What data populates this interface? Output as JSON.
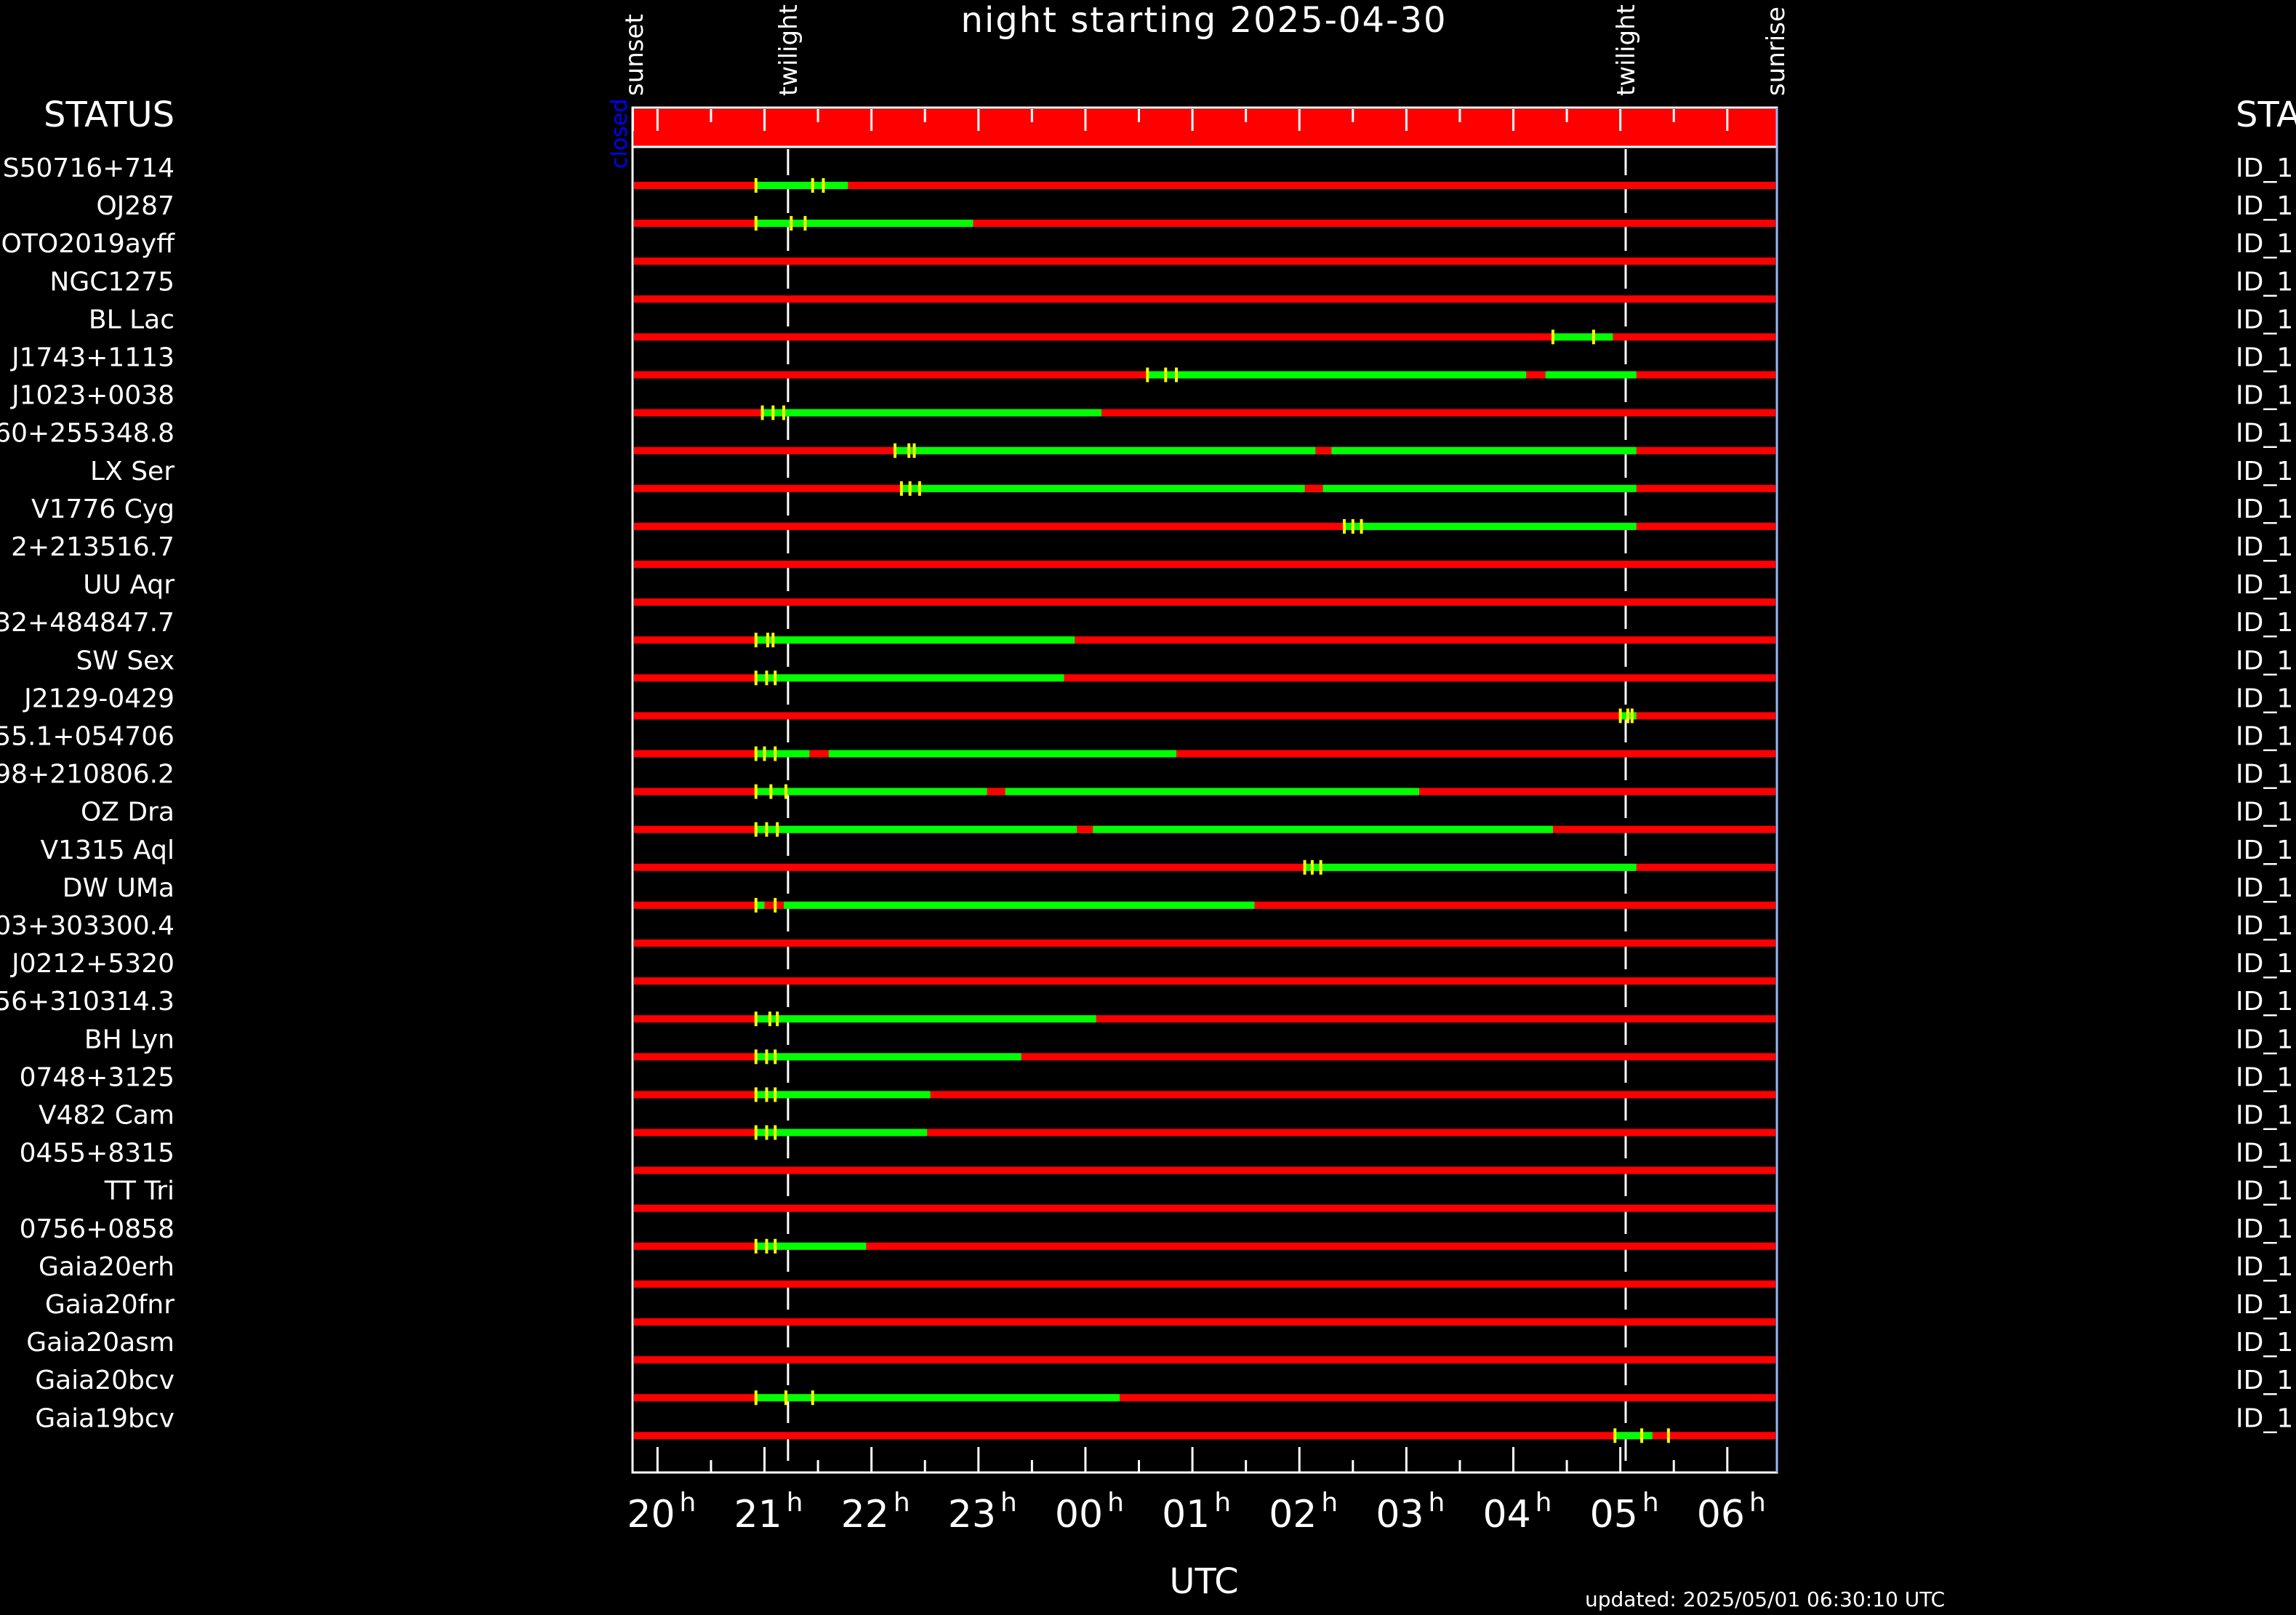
{
  "title": "night starting 2025-04-30",
  "status_header_left": "STATUS",
  "status_header_right": "STA",
  "x_axis_label": "UTC",
  "updated": "updated: 2025/05/01 06:30:10 UTC",
  "event_labels": [
    {
      "label": "sunset",
      "time_h": 19.78
    },
    {
      "label": "twilight",
      "time_h": 21.22
    },
    {
      "label": "twilight",
      "time_h": 5.05
    },
    {
      "label": "sunrise",
      "time_h": 6.45
    }
  ],
  "dome_status": {
    "label": "closed",
    "state": "closed"
  },
  "colors": {
    "observable": "#00ff00",
    "not_observable": "#ff0000",
    "tick": "#ffff00",
    "status_text": "#0000ff",
    "background": "#000000"
  },
  "chart_data": {
    "type": "timeline",
    "title": "night starting 2025-04-30",
    "xlabel": "UTC",
    "x_range_h": [
      19.78,
      6.45
    ],
    "x_ticks": [
      {
        "hour": "20",
        "sup": "h"
      },
      {
        "hour": "21",
        "sup": "h"
      },
      {
        "hour": "22",
        "sup": "h"
      },
      {
        "hour": "23",
        "sup": "h"
      },
      {
        "hour": "00",
        "sup": "h"
      },
      {
        "hour": "01",
        "sup": "h"
      },
      {
        "hour": "02",
        "sup": "h"
      },
      {
        "hour": "03",
        "sup": "h"
      },
      {
        "hour": "04",
        "sup": "h"
      },
      {
        "hour": "05",
        "sup": "h"
      },
      {
        "hour": "06",
        "sup": "h"
      }
    ],
    "twilight_lines_h": [
      21.22,
      5.05
    ],
    "rows": [
      {
        "name": "S50716+714",
        "status": "ID_1",
        "green": [
          [
            20.92,
            21.78
          ]
        ],
        "red_gaps": [],
        "ticks": [
          21.45,
          21.55
        ]
      },
      {
        "name": "OJ287",
        "status": "ID_1",
        "green": [
          [
            20.92,
            22.95
          ]
        ],
        "red_gaps": [],
        "ticks": [
          21.25,
          21.38
        ]
      },
      {
        "name": "GOTO2019ayff",
        "status": "ID_1",
        "green": [],
        "red_gaps": [],
        "ticks": []
      },
      {
        "name": "NGC1275",
        "status": "ID_1",
        "green": [],
        "red_gaps": [],
        "ticks": []
      },
      {
        "name": "BL Lac",
        "status": "ID_1",
        "green": [
          [
            4.37,
            4.93
          ]
        ],
        "red_gaps": [],
        "ticks": [
          4.75
        ]
      },
      {
        "name": "J1743+1113",
        "status": "ID_1",
        "green": [
          [
            0.58,
            5.15
          ]
        ],
        "red_gaps": [
          [
            4.12,
            4.3
          ]
        ],
        "ticks": [
          0.75,
          0.85
        ]
      },
      {
        "name": "J1023+0038",
        "status": "ID_1",
        "green": [
          [
            20.98,
            0.15
          ]
        ],
        "red_gaps": [],
        "ticks": [
          21.08,
          21.18
        ]
      },
      {
        "name": "60+255348.8",
        "status": "ID_1",
        "green": [
          [
            22.22,
            5.15
          ]
        ],
        "red_gaps": [
          [
            2.15,
            2.3
          ]
        ],
        "ticks": [
          22.35,
          22.4
        ]
      },
      {
        "name": "LX Ser",
        "status": "ID_1",
        "green": [
          [
            22.28,
            5.15
          ]
        ],
        "red_gaps": [
          [
            2.05,
            2.22
          ]
        ],
        "ticks": [
          22.36,
          22.45
        ]
      },
      {
        "name": "V1776 Cyg",
        "status": "ID_1",
        "green": [
          [
            2.42,
            5.15
          ]
        ],
        "red_gaps": [],
        "ticks": [
          2.5,
          2.58
        ]
      },
      {
        "name": "2+213516.7",
        "status": "ID_1",
        "green": [],
        "red_gaps": [],
        "ticks": []
      },
      {
        "name": "UU Aqr",
        "status": "ID_1",
        "green": [],
        "red_gaps": [],
        "ticks": []
      },
      {
        "name": "32+484847.7",
        "status": "ID_1",
        "green": [
          [
            20.92,
            23.9
          ]
        ],
        "red_gaps": [],
        "ticks": [
          21.03,
          21.08
        ]
      },
      {
        "name": "SW Sex",
        "status": "ID_1",
        "green": [
          [
            20.92,
            23.8
          ]
        ],
        "red_gaps": [],
        "ticks": [
          21.02,
          21.1
        ]
      },
      {
        "name": "J2129-0429",
        "status": "ID_1",
        "green": [
          [
            5.0,
            5.15
          ]
        ],
        "red_gaps": [],
        "ticks": [
          5.07,
          5.11
        ]
      },
      {
        "name": "55.1+054706",
        "status": "ID_1",
        "green": [
          [
            20.92,
            0.85
          ]
        ],
        "red_gaps": [
          [
            21.42,
            21.6
          ]
        ],
        "ticks": [
          21.0,
          21.1
        ]
      },
      {
        "name": "98+210806.2",
        "status": "ID_1",
        "green": [
          [
            20.92,
            3.12
          ]
        ],
        "red_gaps": [
          [
            23.08,
            23.25
          ]
        ],
        "ticks": [
          21.06,
          21.2
        ]
      },
      {
        "name": "OZ Dra",
        "status": "ID_1",
        "green": [
          [
            20.92,
            4.37
          ]
        ],
        "red_gaps": [
          [
            23.92,
            24.07
          ]
        ],
        "ticks": [
          21.02,
          21.12
        ]
      },
      {
        "name": "V1315 Aql",
        "status": "ID_1",
        "green": [
          [
            2.05,
            5.15
          ]
        ],
        "red_gaps": [],
        "ticks": [
          2.12,
          2.2
        ]
      },
      {
        "name": "DW UMa",
        "status": "ID_1",
        "green": [
          [
            20.92,
            1.58
          ]
        ],
        "red_gaps": [
          [
            21.0,
            21.18
          ]
        ],
        "ticks": [
          21.1
        ]
      },
      {
        "name": "03+303300.4",
        "status": "ID_1",
        "green": [],
        "red_gaps": [],
        "ticks": []
      },
      {
        "name": "J0212+5320",
        "status": "ID_1",
        "green": [],
        "red_gaps": [],
        "ticks": []
      },
      {
        "name": "56+310314.3",
        "status": "ID_1",
        "green": [
          [
            20.92,
            0.1
          ]
        ],
        "red_gaps": [],
        "ticks": [
          21.05,
          21.12
        ]
      },
      {
        "name": "BH Lyn",
        "status": "ID_1",
        "green": [
          [
            20.92,
            23.4
          ]
        ],
        "red_gaps": [],
        "ticks": [
          21.02,
          21.1
        ]
      },
      {
        "name": "0748+3125",
        "status": "ID_1",
        "green": [
          [
            20.92,
            22.55
          ]
        ],
        "red_gaps": [],
        "ticks": [
          21.02,
          21.1
        ]
      },
      {
        "name": "V482 Cam",
        "status": "ID_1",
        "green": [
          [
            20.92,
            22.52
          ]
        ],
        "red_gaps": [],
        "ticks": [
          21.02,
          21.1
        ]
      },
      {
        "name": "0455+8315",
        "status": "ID_1",
        "green": [],
        "red_gaps": [],
        "ticks": []
      },
      {
        "name": "TT Tri",
        "status": "ID_1",
        "green": [],
        "red_gaps": [],
        "ticks": []
      },
      {
        "name": "0756+0858",
        "status": "ID_1",
        "green": [
          [
            20.92,
            21.95
          ]
        ],
        "red_gaps": [],
        "ticks": [
          21.02,
          21.1
        ]
      },
      {
        "name": "Gaia20erh",
        "status": "ID_1",
        "green": [],
        "red_gaps": [],
        "ticks": []
      },
      {
        "name": "Gaia20fnr",
        "status": "ID_1",
        "green": [],
        "red_gaps": [],
        "ticks": []
      },
      {
        "name": "Gaia20asm",
        "status": "ID_1",
        "green": [],
        "red_gaps": [],
        "ticks": []
      },
      {
        "name": "Gaia20bcv",
        "status": "ID_1",
        "green": [
          [
            20.92,
            0.32
          ]
        ],
        "red_gaps": [],
        "ticks": [
          21.2,
          21.45
        ]
      },
      {
        "name": "Gaia19bcv",
        "status": "ID_1",
        "green": [
          [
            4.95,
            5.3
          ]
        ],
        "red_gaps": [],
        "ticks": [
          5.2,
          5.45
        ]
      }
    ]
  }
}
